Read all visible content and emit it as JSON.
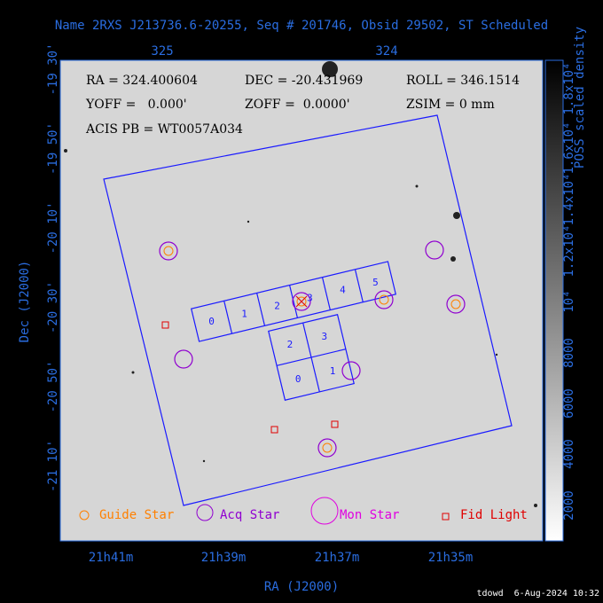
{
  "header": {
    "title": "Name 2RXS J213736.6-20255, Seq # 201746, Obsid 29502, ST Scheduled"
  },
  "info": {
    "ra": "RA = 324.400604",
    "dec": "DEC = -20.431969",
    "roll": "ROLL = 346.1514",
    "yoff": "YOFF =   0.000'",
    "zoff": "ZOFF =  0.0000'",
    "zsim": "ZSIM = 0 mm",
    "acis": "ACIS PB = WT0057A034"
  },
  "axes": {
    "x_label": "RA (J2000)",
    "y_label": "Dec (J2000)",
    "top_ticks": [
      "325",
      "324"
    ],
    "bottom_ticks": [
      "21h41m",
      "21h39m",
      "21h37m",
      "21h35m"
    ],
    "left_ticks": [
      "-19 30'",
      "-19 50'",
      "-20 10'",
      "-20 30'",
      "-20 50'",
      "-21 10'"
    ]
  },
  "colorbar": {
    "label": "POSS scaled density",
    "ticks": [
      "2000",
      "4000",
      "6000",
      "8000",
      "10⁴",
      "1.2x10⁴",
      "1.4x10⁴",
      "1.6x10⁴",
      "1.8x10⁴"
    ]
  },
  "chips": {
    "s_array": [
      "0",
      "1",
      "2",
      "3",
      "4",
      "5"
    ],
    "i_array": [
      "2",
      "3",
      "0",
      "1"
    ]
  },
  "legend": {
    "guide": "Guide Star",
    "acq": "Acq Star",
    "mon": "Mon Star",
    "fid": "Fid Light"
  },
  "footer": {
    "stamp": "tdowd  6-Aug-2024 10:32"
  }
}
